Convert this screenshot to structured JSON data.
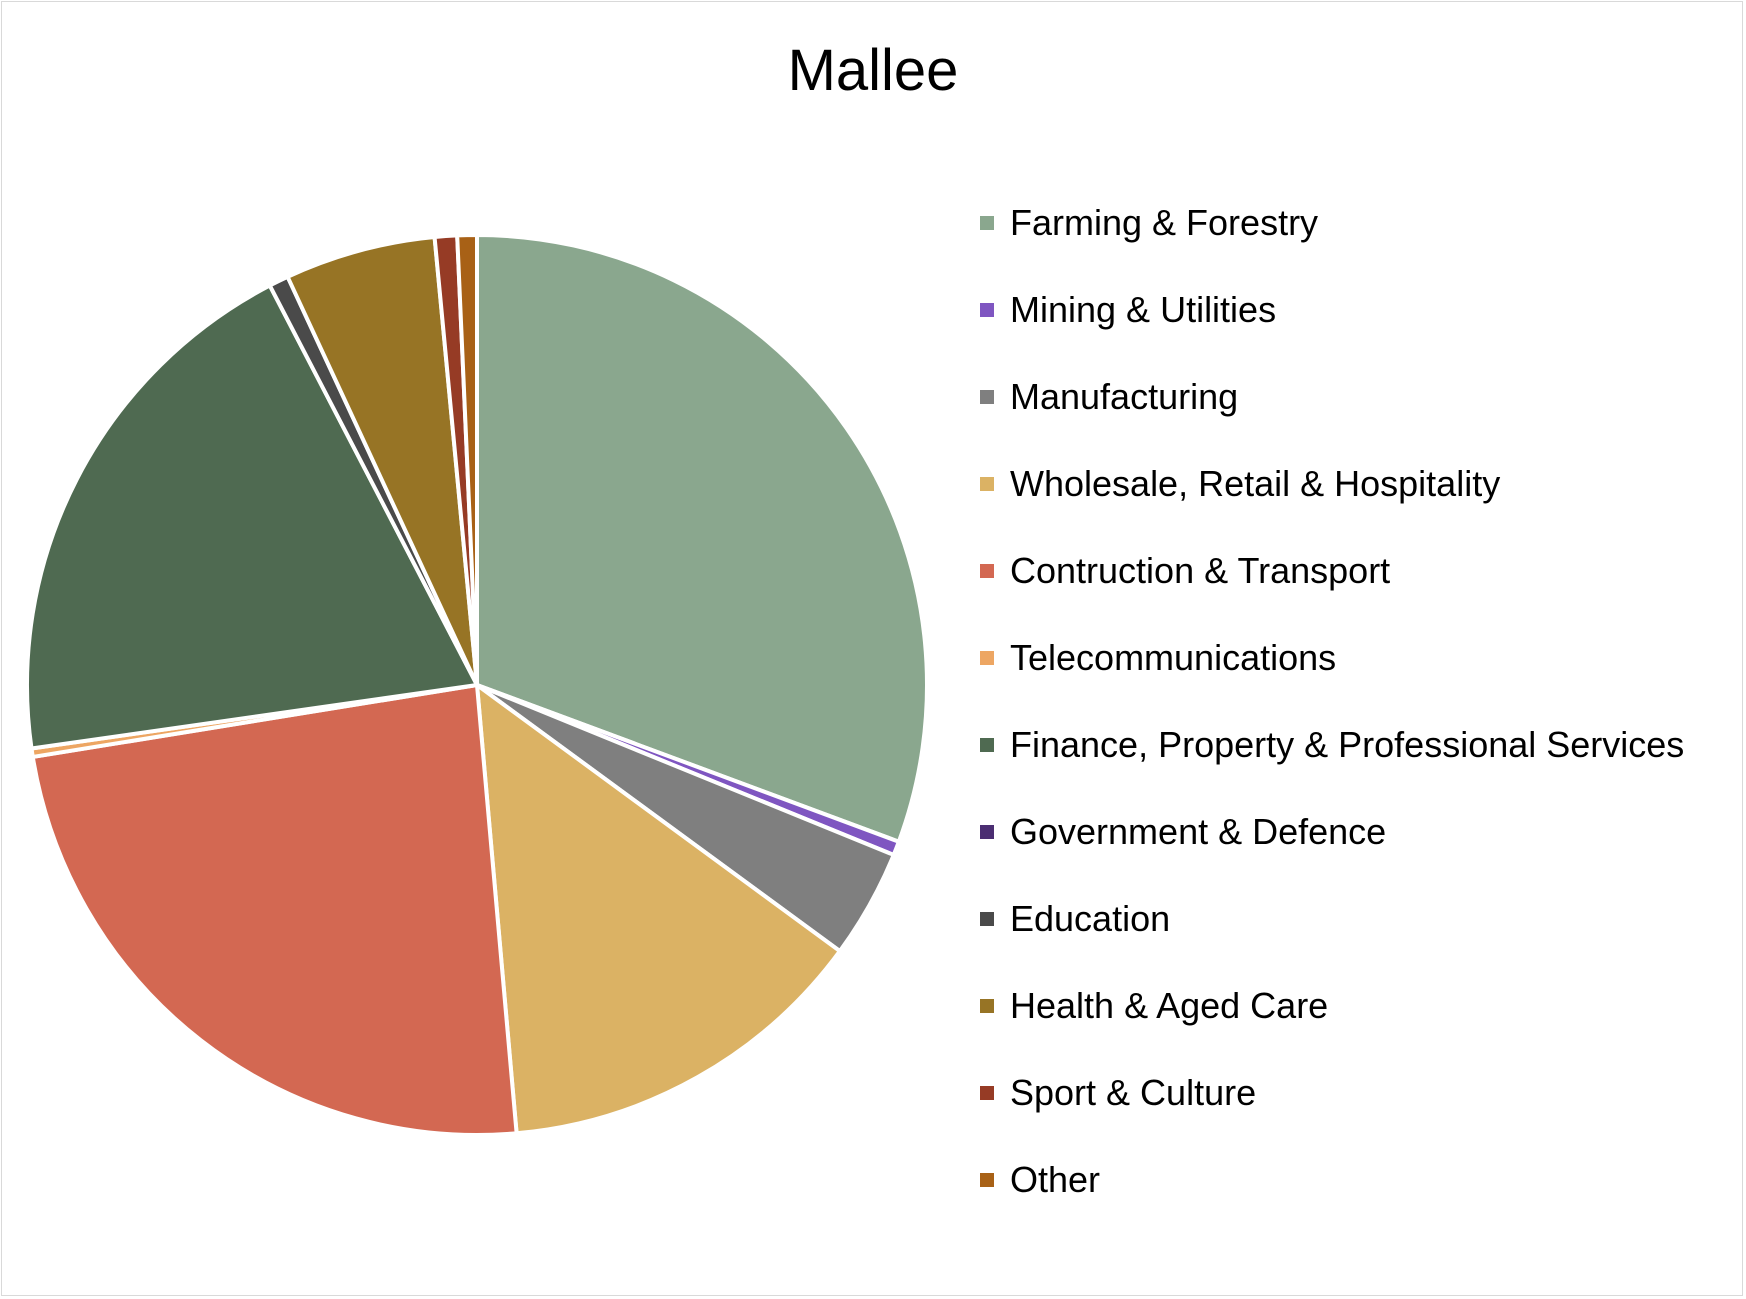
{
  "chart_data": {
    "type": "pie",
    "title": "Mallee",
    "legend_position": "right",
    "start_angle": "12 o'clock",
    "direction": "clockwise",
    "slices": [
      {
        "label": "Farming & Forestry",
        "value": 30.6,
        "color": "#8aa78e"
      },
      {
        "label": "Mining & Utilities",
        "value": 0.5,
        "color": "#7f56c1"
      },
      {
        "label": "Manufacturing",
        "value": 3.9,
        "color": "#7f7f7f"
      },
      {
        "label": "Wholesale, Retail & Hospitality",
        "value": 13.5,
        "color": "#dbb264"
      },
      {
        "label": "Contruction & Transport",
        "value": 23.8,
        "color": "#d36852"
      },
      {
        "label": "Telecommunications",
        "value": 0.3,
        "color": "#eda663"
      },
      {
        "label": "Finance, Property & Professional Services",
        "value": 19.6,
        "color": "#4f6a51"
      },
      {
        "label": "Government & Defence",
        "value": 0.0,
        "color": "#4b2e72"
      },
      {
        "label": "Education",
        "value": 0.7,
        "color": "#4a4a4a"
      },
      {
        "label": "Health & Aged Care",
        "value": 5.4,
        "color": "#977425"
      },
      {
        "label": "Sport & Culture",
        "value": 0.8,
        "color": "#963b25"
      },
      {
        "label": "Other",
        "value": 0.7,
        "color": "#a86116"
      }
    ]
  }
}
